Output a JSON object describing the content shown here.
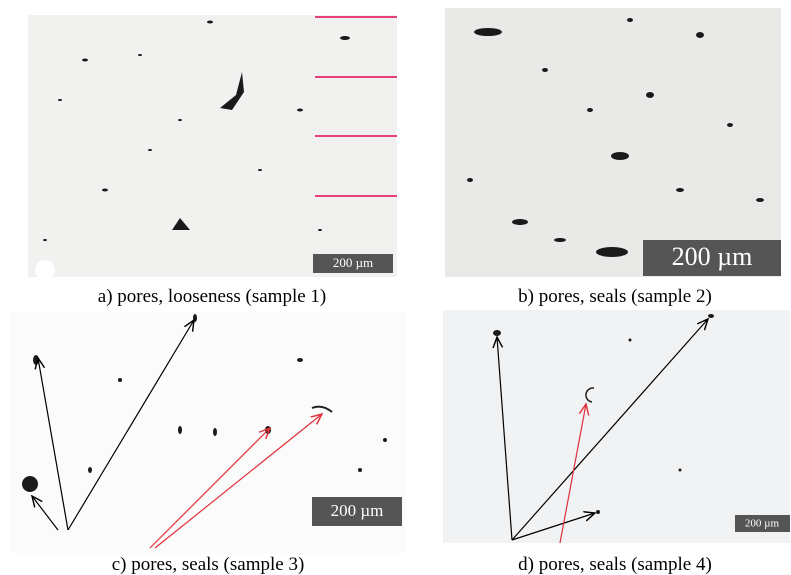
{
  "panels": [
    {
      "caption": "a) pores, looseness (sample 1)",
      "scale_bar": "200 µm"
    },
    {
      "caption": "b) pores, seals (sample 2)",
      "scale_bar": "200 µm"
    },
    {
      "caption": "c) pores, seals (sample 3)",
      "scale_bar": "200 µm"
    },
    {
      "caption": "d) pores, seals (sample 4)",
      "scale_bar": "200 µm"
    }
  ]
}
